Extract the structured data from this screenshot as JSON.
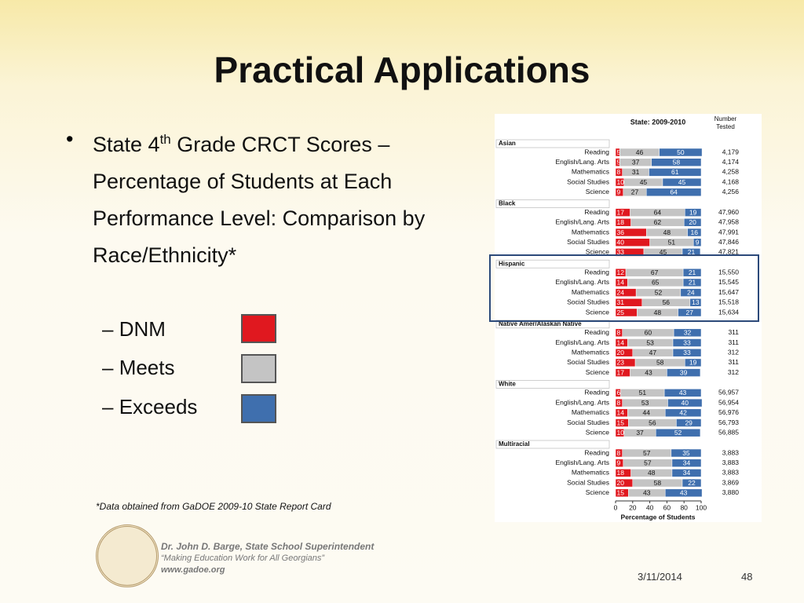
{
  "slide": {
    "title": "Practical Applications",
    "bullet": {
      "before": "State 4",
      "sup": "th",
      "after": " Grade CRCT Scores – Percentage of Students at Each Performance Level: Comparison by Race/Ethnicity*"
    },
    "footnote": "*Data obtained from GaDOE 2009-10 State Report Card",
    "footer": {
      "name": "Dr. John D. Barge, State School Superintendent",
      "motto": "“Making Education Work for All Georgians”",
      "site": "www.gadoe.org",
      "date": "3/11/2014",
      "page": "48"
    }
  },
  "chart_data": {
    "type": "bar",
    "title": "State: 2009-2010",
    "number_label": "Number Tested",
    "xlabel": "Percentage of Students",
    "xlim": [
      0,
      100
    ],
    "xticks": [
      0,
      20,
      40,
      60,
      80,
      100
    ],
    "series": [
      {
        "name": "DNM",
        "color": "#e0181f"
      },
      {
        "name": "Meets",
        "color": "#c4c4c4"
      },
      {
        "name": "Exceeds",
        "color": "#3f6fae"
      }
    ],
    "panels": [
      {
        "name": "Asian",
        "categories": [
          "Reading",
          "English/Lang. Arts",
          "Mathematics",
          "Social Studies",
          "Science"
        ],
        "values": [
          [
            5,
            5,
            8,
            10,
            9
          ],
          [
            46,
            37,
            31,
            45,
            27
          ],
          [
            50,
            58,
            61,
            45,
            64
          ]
        ],
        "number_tested": [
          4179,
          4174,
          4258,
          4168,
          4256
        ],
        "number_labels": [
          "4,179",
          "4,174",
          "4,258",
          "4,168",
          "4,256"
        ]
      },
      {
        "name": "Black",
        "categories": [
          "Reading",
          "English/Lang. Arts",
          "Mathematics",
          "Social Studies",
          "Science"
        ],
        "values": [
          [
            17,
            18,
            36,
            40,
            33
          ],
          [
            64,
            62,
            48,
            51,
            45
          ],
          [
            19,
            20,
            16,
            9,
            21
          ]
        ],
        "number_tested": [
          47960,
          47958,
          47991,
          47846,
          47821
        ],
        "number_labels": [
          "47,960",
          "47,958",
          "47,991",
          "47,846",
          "47,821"
        ]
      },
      {
        "name": "Hispanic",
        "categories": [
          "Reading",
          "English/Lang. Arts",
          "Mathematics",
          "Social Studies",
          "Science"
        ],
        "values": [
          [
            12,
            14,
            24,
            31,
            25
          ],
          [
            67,
            65,
            52,
            56,
            48
          ],
          [
            21,
            21,
            24,
            13,
            27
          ]
        ],
        "number_tested": [
          15550,
          15545,
          15647,
          15518,
          15634
        ],
        "number_labels": [
          "15,550",
          "15,545",
          "15,647",
          "15,518",
          "15,634"
        ]
      },
      {
        "name": "Native Amer/Alaskan Native",
        "categories": [
          "Reading",
          "English/Lang. Arts",
          "Mathematics",
          "Social Studies",
          "Science"
        ],
        "values": [
          [
            8,
            14,
            20,
            23,
            17
          ],
          [
            60,
            53,
            47,
            58,
            43
          ],
          [
            32,
            33,
            33,
            19,
            39
          ]
        ],
        "number_tested": [
          311,
          311,
          312,
          311,
          312
        ]
      },
      {
        "name": "White",
        "categories": [
          "Reading",
          "English/Lang. Arts",
          "Mathematics",
          "Social Studies",
          "Science"
        ],
        "values": [
          [
            6,
            8,
            14,
            15,
            10
          ],
          [
            51,
            53,
            44,
            56,
            37
          ],
          [
            43,
            40,
            42,
            29,
            52
          ]
        ],
        "number_tested": [
          56957,
          56954,
          56976,
          56793,
          56885
        ],
        "number_labels": [
          "56,957",
          "56,954",
          "56,976",
          "56,793",
          "56,885"
        ]
      },
      {
        "name": "Multiracial",
        "categories": [
          "Reading",
          "English/Lang. Arts",
          "Mathematics",
          "Social Studies",
          "Science"
        ],
        "values": [
          [
            8,
            9,
            18,
            20,
            15
          ],
          [
            57,
            57,
            48,
            58,
            43
          ],
          [
            35,
            34,
            34,
            22,
            43
          ]
        ],
        "number_tested": [
          3883,
          3883,
          3883,
          3869,
          3880
        ],
        "number_labels": [
          "3,883",
          "3,883",
          "3,883",
          "3,869",
          "3,880"
        ]
      }
    ]
  }
}
